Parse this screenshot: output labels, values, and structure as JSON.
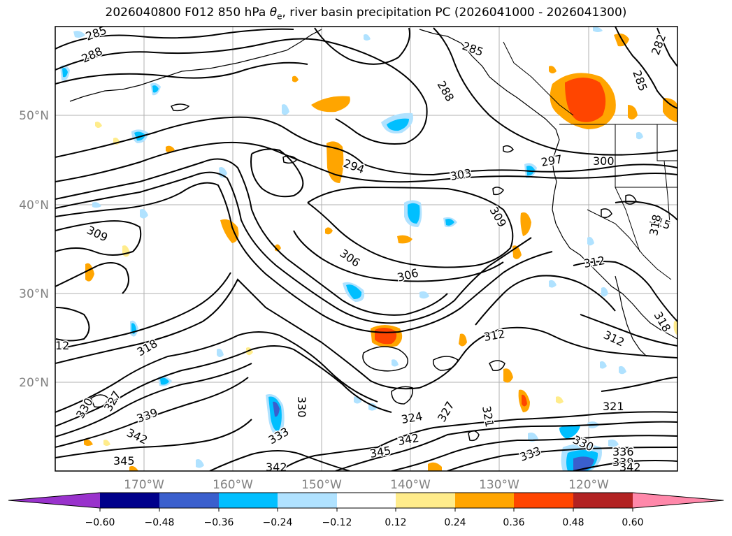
{
  "title": {
    "prefix": "2026040800 F012 850 hPa ",
    "theta_symbol": "θ",
    "theta_sub": "e",
    "suffix": ", river basin precipitation PC (2026041000 - 2026041300)"
  },
  "map": {
    "lat_labels": [
      "50°N",
      "40°N",
      "30°N",
      "20°N"
    ],
    "lon_labels": [
      "170°W",
      "160°W",
      "150°W",
      "140°W",
      "130°W",
      "120°W"
    ],
    "contour_labels": [
      "285",
      "288",
      "285",
      "288",
      "285",
      "282",
      "294",
      "303",
      "297",
      "300",
      "309",
      "315",
      "309",
      "306",
      "306",
      "312",
      "318",
      "312",
      "318",
      "321",
      "312",
      "12",
      "327",
      "330",
      "330",
      "339",
      "342",
      "345",
      "333",
      "324",
      "327",
      "342",
      "345",
      "321",
      "330",
      "333",
      "336",
      "339",
      "342",
      "342",
      "318"
    ]
  },
  "colorbar": {
    "colors": [
      "#9932cc",
      "#00008b",
      "#3a5fcd",
      "#00bfff",
      "#b0e2ff",
      "#ffffff",
      "#ffec8b",
      "#ffa500",
      "#ff4500",
      "#b22222",
      "#ff88aa",
      "#ff88aa"
    ],
    "ticks": [
      "−0.60",
      "−0.48",
      "−0.36",
      "−0.24",
      "−0.12",
      "0.12",
      "0.24",
      "0.36",
      "0.48",
      "0.60"
    ]
  },
  "style": {
    "grid_color": "#b0b0b0",
    "label_color": "#808080"
  }
}
